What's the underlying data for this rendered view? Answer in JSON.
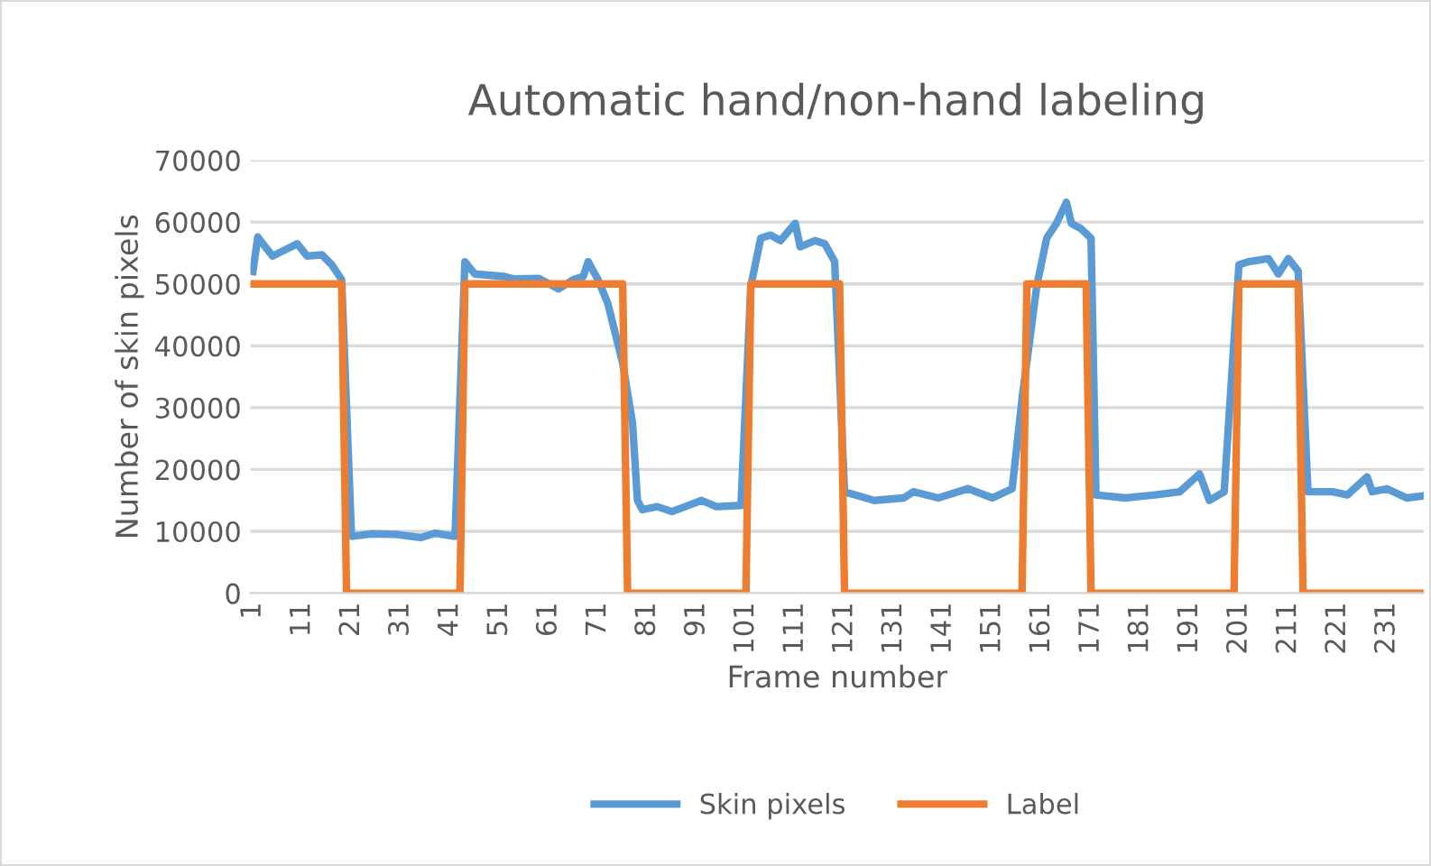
{
  "chart_data": {
    "type": "line",
    "title": "Automatic hand/non-hand labeling",
    "xlabel": "Frame number",
    "ylabel": "Number of skin pixels",
    "xlim": [
      0.5,
      238.5
    ],
    "xticks": [
      1,
      11,
      21,
      31,
      41,
      51,
      61,
      71,
      81,
      91,
      101,
      111,
      121,
      131,
      141,
      151,
      161,
      171,
      181,
      191,
      201,
      211,
      221,
      231
    ],
    "ylim": [
      0,
      70000
    ],
    "yticks": [
      0,
      10000,
      20000,
      30000,
      40000,
      50000,
      60000,
      70000
    ],
    "grid": "y",
    "legend": "bottom",
    "marker": "none",
    "line_style": "solid",
    "series": [
      {
        "name": "Skin pixels",
        "color": "#5b9bd5",
        "x": [
          1,
          2,
          3,
          5,
          7,
          10,
          12,
          15,
          17,
          19,
          21,
          25,
          30,
          35,
          38,
          42,
          44,
          46,
          52,
          54,
          59,
          63,
          66,
          68,
          69,
          71,
          73,
          76,
          78,
          79,
          80,
          83,
          86,
          92,
          95,
          100,
          102,
          104,
          106,
          108,
          111,
          112,
          115,
          117,
          119,
          121,
          127,
          133,
          135,
          140,
          146,
          151,
          155,
          157,
          160,
          162,
          164,
          166,
          167,
          169,
          171,
          172,
          178,
          184,
          189,
          193,
          195,
          198,
          201,
          203,
          207,
          209,
          211,
          213,
          215,
          220,
          223,
          227,
          228,
          231,
          235,
          238
        ],
        "values": [
          52000,
          57600,
          56500,
          54500,
          55300,
          56500,
          54500,
          54700,
          53100,
          50700,
          9200,
          9600,
          9500,
          9000,
          9700,
          9200,
          53600,
          51600,
          51200,
          50800,
          50900,
          49200,
          50700,
          51200,
          53600,
          50700,
          46800,
          37200,
          27500,
          15000,
          13500,
          14000,
          13200,
          15000,
          14000,
          14200,
          49700,
          57400,
          57900,
          57000,
          59800,
          56000,
          57000,
          56500,
          53600,
          16400,
          15000,
          15400,
          16400,
          15400,
          16900,
          15400,
          16900,
          31400,
          49700,
          57400,
          59800,
          63200,
          59800,
          58900,
          57400,
          15900,
          15400,
          15900,
          16400,
          19300,
          15000,
          16400,
          53100,
          53600,
          54100,
          51600,
          54100,
          52100,
          16400,
          16400,
          15900,
          18800,
          16400,
          16900,
          15400,
          15700
        ]
      },
      {
        "name": "Label",
        "color": "#ed7d31",
        "x": [
          1,
          19,
          20,
          43,
          44,
          76,
          77,
          101,
          102,
          120,
          121,
          157,
          158,
          170,
          171,
          200,
          201,
          213,
          214,
          238
        ],
        "values": [
          50000,
          50000,
          0,
          0,
          50000,
          50000,
          0,
          0,
          50000,
          50000,
          0,
          0,
          50000,
          50000,
          0,
          0,
          50000,
          50000,
          0,
          0
        ]
      }
    ]
  }
}
